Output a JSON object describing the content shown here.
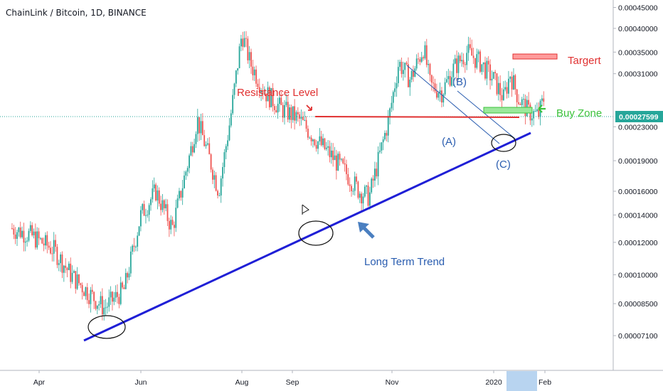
{
  "chart_data": {
    "type": "candlestick",
    "title": "ChainLink / Bitcoin, 1D, BINANCE",
    "scale": "log",
    "ylim": [
      6.2e-05,
      0.00046
    ],
    "y_ticks": [
      "0.00045000",
      "0.00040000",
      "0.00035000",
      "0.00031000",
      "0.00027599",
      "0.00023000",
      "0.00019000",
      "0.00016000",
      "0.00014000",
      "0.00012000",
      "0.00010000",
      "0.00008500",
      "0.00007100"
    ],
    "last_price": "0.00027599",
    "x_ticks": [
      "Apr",
      "Jun",
      "Aug",
      "Sep",
      "Nov",
      "2020",
      "Feb"
    ],
    "price_path": [
      [
        "2019-03-10",
        0.00013
      ],
      [
        "2019-03-25",
        0.000125
      ],
      [
        "2019-04-10",
        0.000115
      ],
      [
        "2019-04-20",
        0.0001
      ],
      [
        "2019-05-01",
        9e-05
      ],
      [
        "2019-05-10",
        8.3e-05
      ],
      [
        "2019-05-22",
        9.2e-05
      ],
      [
        "2019-06-01",
        0.00014
      ],
      [
        "2019-06-10",
        0.00016
      ],
      [
        "2019-06-20",
        0.00013
      ],
      [
        "2019-07-01",
        0.0002
      ],
      [
        "2019-07-05",
        0.00024
      ],
      [
        "2019-07-12",
        0.000195
      ],
      [
        "2019-07-18",
        0.00016
      ],
      [
        "2019-07-25",
        0.00024
      ],
      [
        "2019-08-01",
        0.00039
      ],
      [
        "2019-08-06",
        0.00033
      ],
      [
        "2019-08-15",
        0.00028
      ],
      [
        "2019-08-25",
        0.000255
      ],
      [
        "2019-09-05",
        0.00024
      ],
      [
        "2019-09-15",
        0.000215
      ],
      [
        "2019-09-25",
        0.000195
      ],
      [
        "2019-10-05",
        0.000175
      ],
      [
        "2019-10-12",
        0.00016
      ],
      [
        "2019-10-18",
        0.000155
      ],
      [
        "2019-10-25",
        0.0002
      ],
      [
        "2019-10-30",
        0.00024
      ],
      [
        "2019-11-05",
        0.00033
      ],
      [
        "2019-11-12",
        0.0003
      ],
      [
        "2019-11-20",
        0.00036
      ],
      [
        "2019-11-24",
        0.00029
      ],
      [
        "2019-12-01",
        0.00028
      ],
      [
        "2019-12-08",
        0.00032
      ],
      [
        "2019-12-16",
        0.00035
      ],
      [
        "2019-12-24",
        0.00033
      ],
      [
        "2020-01-01",
        0.0003
      ],
      [
        "2020-01-07",
        0.00027
      ],
      [
        "2020-01-11",
        0.00031
      ],
      [
        "2020-01-16",
        0.00027
      ],
      [
        "2020-01-22",
        0.00025
      ],
      [
        "2020-01-28",
        0.000245
      ],
      [
        "2020-02-01",
        0.000275
      ]
    ],
    "annotations": {
      "resistance_label": "Resistance Level",
      "target_label": "Targert",
      "buy_zone_label": "Buy Zone",
      "trend_label": "Long Term Trend",
      "wave_a": "(A)",
      "wave_b": "(B)",
      "wave_c": "(C)"
    },
    "colors": {
      "up": "#26a69a",
      "down": "#ef5350",
      "trendline": "#1f1fd6",
      "resistance": "#e03030",
      "target_zone": "#ff6b6b",
      "buy_zone": "#7be37b",
      "label_blue": "#2a5db0",
      "arrow_blue": "#4a7fc0"
    }
  }
}
